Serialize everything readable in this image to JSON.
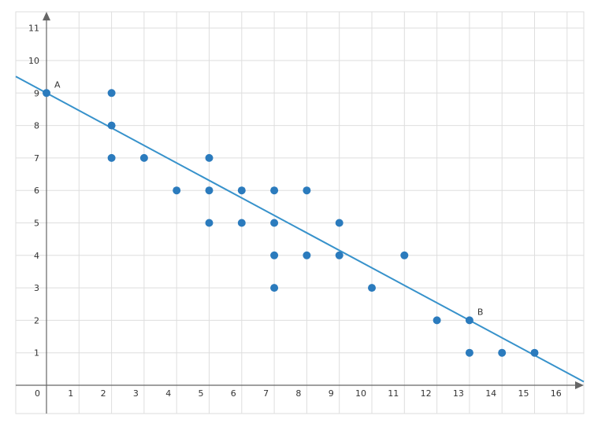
{
  "chart_data": {
    "type": "scatter",
    "x_ticks": [
      "0",
      "1",
      "2",
      "3",
      "4",
      "5",
      "6",
      "7",
      "8",
      "9",
      "10",
      "11",
      "12",
      "13",
      "14",
      "15",
      "16"
    ],
    "y_ticks": [
      "1",
      "2",
      "3",
      "4",
      "5",
      "6",
      "7",
      "8",
      "9",
      "10",
      "11"
    ],
    "xlim": [
      -1,
      16.5
    ],
    "ylim": [
      -1,
      11.5
    ],
    "grid": true,
    "colors": {
      "point": "#2b7bbd",
      "line": "#3792cb",
      "grid": "#dedede",
      "axis": "#666666"
    },
    "points": [
      {
        "x": 0,
        "y": 9
      },
      {
        "x": 2,
        "y": 9
      },
      {
        "x": 2,
        "y": 8
      },
      {
        "x": 2,
        "y": 7
      },
      {
        "x": 3,
        "y": 7
      },
      {
        "x": 4,
        "y": 6
      },
      {
        "x": 5,
        "y": 7
      },
      {
        "x": 5,
        "y": 6
      },
      {
        "x": 5,
        "y": 5
      },
      {
        "x": 6,
        "y": 6
      },
      {
        "x": 6,
        "y": 5
      },
      {
        "x": 7,
        "y": 6
      },
      {
        "x": 7,
        "y": 5
      },
      {
        "x": 7,
        "y": 4
      },
      {
        "x": 7,
        "y": 3
      },
      {
        "x": 8,
        "y": 6
      },
      {
        "x": 8,
        "y": 4
      },
      {
        "x": 9,
        "y": 5
      },
      {
        "x": 9,
        "y": 4
      },
      {
        "x": 10,
        "y": 3
      },
      {
        "x": 11,
        "y": 4
      },
      {
        "x": 12,
        "y": 2
      },
      {
        "x": 13,
        "y": 2
      },
      {
        "x": 13,
        "y": 1
      },
      {
        "x": 14,
        "y": 1
      },
      {
        "x": 15,
        "y": 1
      }
    ],
    "trend_line": {
      "slope": -0.5385,
      "intercept": 9
    },
    "point_labels": [
      {
        "text": "A",
        "x": 0,
        "y": 9
      },
      {
        "text": "B",
        "x": 13,
        "y": 2
      }
    ]
  }
}
